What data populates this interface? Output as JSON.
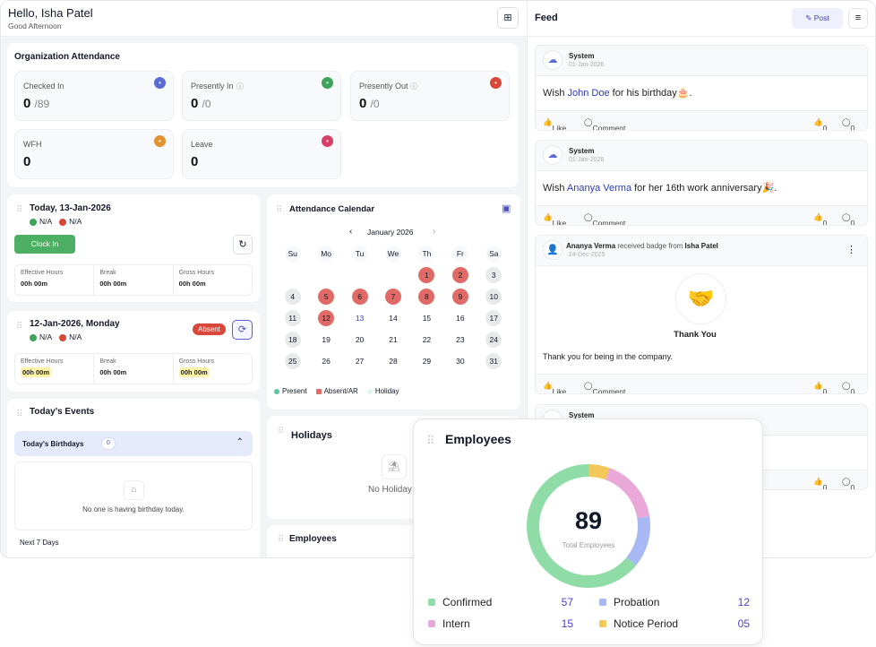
{
  "header": {
    "greeting": "Hello, Isha Patel",
    "subtitle": "Good Afternoon",
    "add_widget_icon": "grid-plus-icon"
  },
  "org_attendance": {
    "title": "Organization Attendance",
    "stats": [
      {
        "label": "Checked In",
        "value": "0",
        "total": "/89",
        "color": "#5b6bd6",
        "icon": "checkin-icon"
      },
      {
        "label": "Presently In",
        "value": "0",
        "total": "/0",
        "color": "#3fa35c",
        "icon": "arrow-in-icon"
      },
      {
        "label": "Presently Out",
        "value": "0",
        "total": "/0",
        "color": "#d9473a",
        "icon": "arrow-out-icon"
      },
      {
        "label": "WFH",
        "value": "0",
        "color": "#e2922e",
        "icon": "home-icon"
      },
      {
        "label": "Leave",
        "value": "0",
        "color": "#d83f66",
        "icon": "user-leave-icon"
      }
    ]
  },
  "today": {
    "title": "Today, 13-Jan-2026",
    "in": "N/A",
    "out": "N/A",
    "clock_in": "Clock In",
    "hours": [
      {
        "label": "Effective Hours",
        "value": "00h 00m"
      },
      {
        "label": "Break",
        "value": "00h 00m"
      },
      {
        "label": "Gross Hours",
        "value": "00h 00m"
      }
    ]
  },
  "yesterday": {
    "title": "12-Jan-2026, Monday",
    "in": "N/A",
    "out": "N/A",
    "status": "Absent",
    "hours": [
      {
        "label": "Effective Hours",
        "value": "00h 00m"
      },
      {
        "label": "Break",
        "value": "00h 00m"
      },
      {
        "label": "Gross Hours",
        "value": "00h 00m"
      }
    ]
  },
  "events": {
    "title": "Today's Events",
    "birthdays_label": "Today's Birthdays",
    "birthdays_count": "0",
    "empty": "No one is having birthday today.",
    "next7": "Next 7 Days"
  },
  "calendar": {
    "title": "Attendance Calendar",
    "month": "January 2026",
    "weekdays": [
      "Su",
      "Mo",
      "Tu",
      "We",
      "Th",
      "Fr",
      "Sa"
    ],
    "first_weekday": 4,
    "days": 31,
    "today": 13,
    "absent": [
      1,
      2,
      5,
      6,
      7,
      8,
      9,
      12
    ],
    "weekend": [
      3,
      4,
      10,
      11,
      17,
      18,
      24,
      25,
      31
    ],
    "legend": [
      "Present",
      "Absent/AR",
      "Holiday"
    ],
    "colors": {
      "present": "#5cc59a",
      "absent": "#e06b66",
      "holiday": "#e3f5f3"
    }
  },
  "holidays": {
    "title": "Holidays",
    "empty": "No Holiday"
  },
  "employees_small": {
    "title": "Employees"
  },
  "feed": {
    "title": "Feed",
    "post_label": "Post",
    "posts": [
      {
        "author": "System",
        "date": "01-Jan-2026",
        "pre": "Wish ",
        "name": "John Doe",
        "post": " for his birthday🎂.",
        "likes": "0",
        "comments": "0"
      },
      {
        "author": "System",
        "date": "01-Jan-2026",
        "pre": "Wish ",
        "name": "Ananya Verma",
        "post": " for her 16th work anniversary🎉.",
        "likes": "0",
        "comments": "0"
      },
      {
        "author": "Ananya Verma",
        "mid": "received badge from",
        "from": "Isha Patel",
        "date": "24-Dec-2025",
        "badge": "Thank You",
        "message": "Thank you for being in the company.",
        "likes": "0",
        "comments": "0"
      },
      {
        "author": "System",
        "likes": "0",
        "comments": "0"
      }
    ],
    "like": "Like",
    "comment": "Comment"
  },
  "employees": {
    "title": "Employees",
    "chart_data": {
      "type": "pie",
      "total": "89",
      "center_label": "Total Employees",
      "categories": [
        "Confirmed",
        "Probation",
        "Intern",
        "Notice Period"
      ],
      "values": [
        57,
        12,
        15,
        5
      ],
      "display_values": [
        "57",
        "12",
        "15",
        "05"
      ],
      "colors": [
        "#8fdca6",
        "#a8b8f5",
        "#e9a8d8",
        "#f2c85a"
      ]
    }
  }
}
